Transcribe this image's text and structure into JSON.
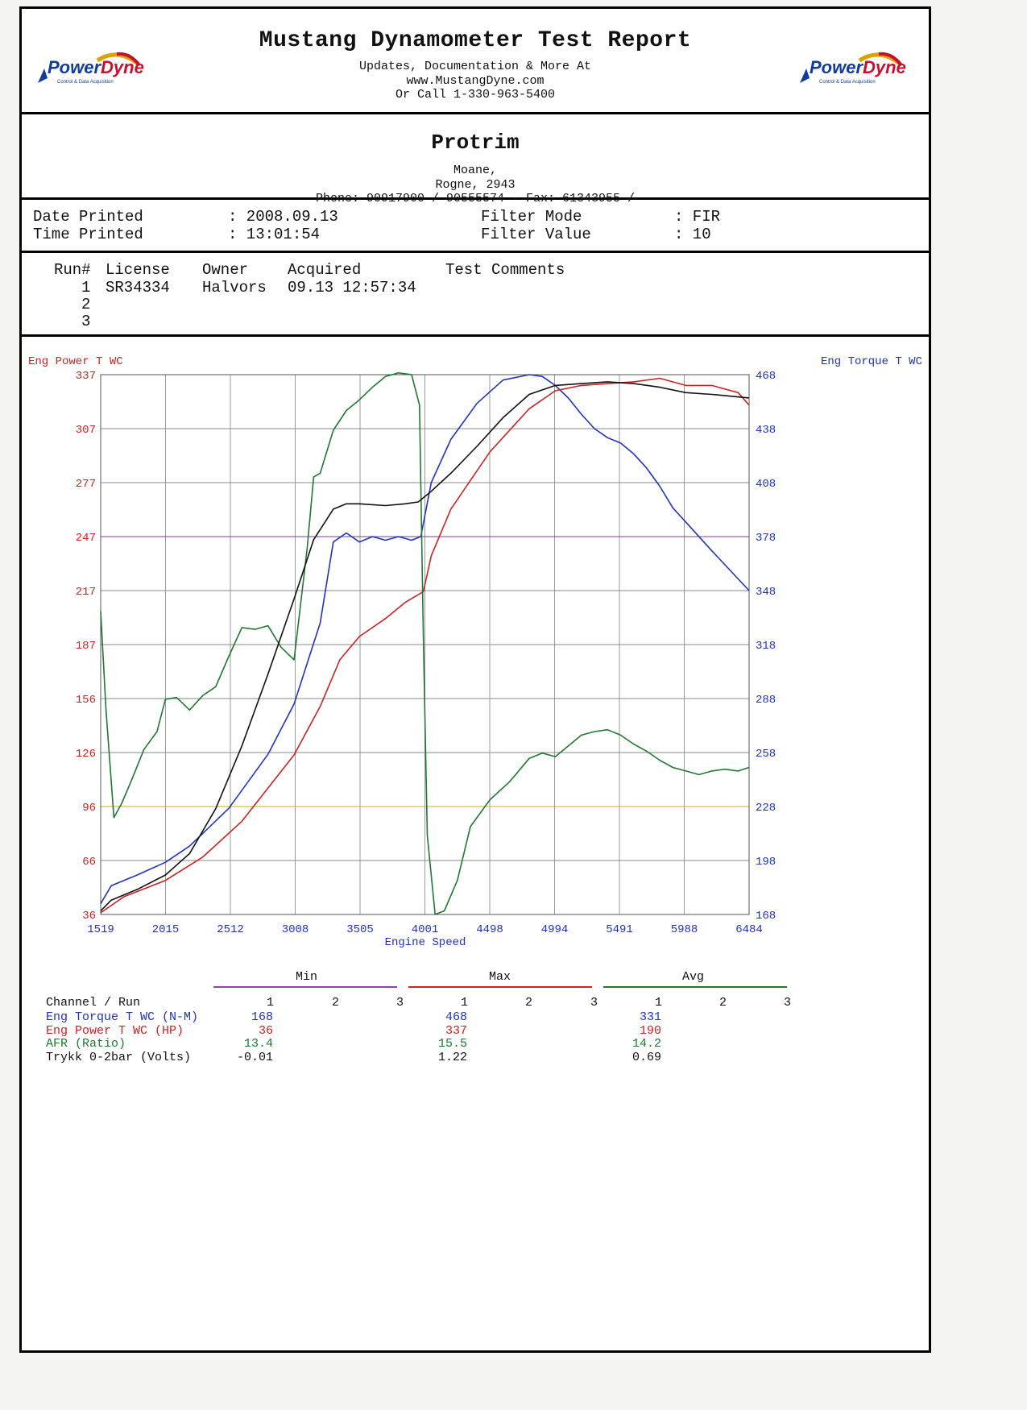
{
  "header": {
    "title": "Mustang Dynamometer Test Report",
    "line1": "Updates, Documentation & More At",
    "line2": "www.MustangDyne.com",
    "line3": "Or Call 1-330-963-5400",
    "logo_text_a": "Power",
    "logo_text_b": "Dyne",
    "logo_tagline": "Control & Data Acquisition"
  },
  "shop": {
    "name": "Protrim",
    "address1": "Moane,",
    "address2": "Rogne,   2943",
    "phone": "Phone: 90917900 / 90555574 - Fax: 61343955 /"
  },
  "print_info": {
    "date_label": "Date Printed",
    "date_value": ": 2008.09.13",
    "time_label": "Time Printed",
    "time_value": ": 13:01:54",
    "filter_mode_label": "Filter Mode",
    "filter_mode_value": ": FIR",
    "filter_value_label": "Filter Value",
    "filter_value_value": ": 10"
  },
  "runs": {
    "headers": [
      "Run#",
      "License",
      "Owner",
      "Acquired",
      "Test Comments"
    ],
    "rows": [
      {
        "run": "1",
        "license": "SR34334",
        "owner": "Halvors",
        "acquired": "09.13 12:57:34",
        "comments": ""
      },
      {
        "run": "2",
        "license": "",
        "owner": "",
        "acquired": "",
        "comments": ""
      },
      {
        "run": "3",
        "license": "",
        "owner": "",
        "acquired": "",
        "comments": ""
      }
    ]
  },
  "chart_data": {
    "type": "line",
    "title": "",
    "xlabel": "Engine Speed",
    "ylabel_left": "Eng Power T WC",
    "ylabel_right": "Eng Torque T WC",
    "xlim": [
      1519,
      6484
    ],
    "ylim_left": [
      36,
      337
    ],
    "ylim_right": [
      168,
      468
    ],
    "x_ticks": [
      "1519",
      "2015",
      "2512",
      "3008",
      "3505",
      "4001",
      "4498",
      "4994",
      "5491",
      "5988",
      "6484"
    ],
    "y_left_ticks": [
      "337",
      "307",
      "277",
      "247",
      "217",
      "187",
      "156",
      "126",
      "96",
      "66",
      "36"
    ],
    "y_right_ticks": [
      "468",
      "438",
      "408",
      "378",
      "348",
      "318",
      "288",
      "258",
      "228",
      "198",
      "168"
    ],
    "grid": true,
    "colors": {
      "torque": "#2233bb",
      "power": "#cc2222",
      "afr": "#227733",
      "boost": "#111111",
      "left_axis": "#cc2222",
      "right_axis": "#2233bb",
      "x_axis": "#2233bb"
    },
    "series": [
      {
        "name": "Eng Torque T WC (N-M)",
        "axis": "right",
        "color": "#2233bb",
        "x": [
          1519,
          1600,
          1800,
          2015,
          2200,
          2500,
          2800,
          3000,
          3200,
          3300,
          3400,
          3500,
          3600,
          3700,
          3800,
          3900,
          3970,
          4050,
          4200,
          4400,
          4600,
          4800,
          4900,
          5000,
          5100,
          5200,
          5300,
          5400,
          5500,
          5600,
          5700,
          5800,
          5900,
          6000,
          6200,
          6484
        ],
        "y": [
          174,
          184,
          190,
          197,
          206,
          227,
          257,
          285,
          330,
          375,
          380,
          375,
          378,
          376,
          378,
          376,
          378,
          408,
          432,
          452,
          465,
          468,
          467,
          462,
          455,
          446,
          438,
          433,
          430,
          424,
          416,
          406,
          394,
          386,
          370,
          348
        ]
      },
      {
        "name": "Eng Power T WC (HP)",
        "axis": "left",
        "color": "#cc2222",
        "x": [
          1519,
          1700,
          2015,
          2300,
          2600,
          3000,
          3200,
          3350,
          3500,
          3700,
          3850,
          3990,
          4050,
          4200,
          4500,
          4800,
          5000,
          5200,
          5400,
          5600,
          5800,
          6000,
          6200,
          6400,
          6484
        ],
        "y": [
          37,
          46,
          55,
          68,
          88,
          125,
          152,
          178,
          191,
          201,
          210,
          216,
          236,
          262,
          294,
          318,
          328,
          331,
          332,
          333,
          335,
          331,
          331,
          327,
          320
        ]
      },
      {
        "name": "AFR (Ratio)",
        "axis": "left",
        "color": "#227733",
        "x": [
          1519,
          1560,
          1620,
          1680,
          1750,
          1850,
          1950,
          2015,
          2100,
          2200,
          2300,
          2400,
          2500,
          2600,
          2700,
          2800,
          2900,
          3000,
          3100,
          3150,
          3200,
          3300,
          3400,
          3500,
          3600,
          3700,
          3800,
          3900,
          3960,
          3990,
          4020,
          4080,
          4150,
          4250,
          4350,
          4500,
          4650,
          4800,
          4900,
          5000,
          5100,
          5200,
          5300,
          5400,
          5500,
          5600,
          5700,
          5800,
          5900,
          6000,
          6100,
          6200,
          6300,
          6400,
          6484
        ],
        "y": [
          205,
          150,
          90,
          98,
          110,
          128,
          138,
          156,
          157,
          150,
          158,
          163,
          180,
          196,
          195,
          197,
          185,
          178,
          240,
          280,
          282,
          306,
          317,
          323,
          330,
          336,
          338,
          337,
          320,
          190,
          80,
          36,
          38,
          55,
          85,
          100,
          110,
          123,
          126,
          124,
          130,
          136,
          138,
          139,
          136,
          131,
          127,
          122,
          118,
          116,
          114,
          116,
          117,
          116,
          118
        ]
      },
      {
        "name": "Trykk 0-2bar (Volts)",
        "axis": "left",
        "color": "#111111",
        "x": [
          1519,
          1600,
          1800,
          2015,
          2200,
          2400,
          2600,
          2800,
          3000,
          3150,
          3300,
          3400,
          3500,
          3700,
          3850,
          3950,
          4050,
          4200,
          4400,
          4600,
          4800,
          5000,
          5200,
          5400,
          5600,
          5800,
          6000,
          6200,
          6484
        ],
        "y": [
          38,
          44,
          50,
          58,
          70,
          95,
          130,
          170,
          212,
          245,
          262,
          265,
          265,
          264,
          265,
          266,
          272,
          282,
          297,
          313,
          326,
          331,
          332,
          333,
          332,
          330,
          327,
          326,
          324
        ]
      }
    ]
  },
  "stats": {
    "group_labels": [
      "Min",
      "Max",
      "Avg"
    ],
    "channel_header": "Channel / Run",
    "run_numbers": [
      "1",
      "2",
      "3"
    ],
    "rows": [
      {
        "name": "Eng Torque T WC (N-M)",
        "color": "#2233bb",
        "min": "168",
        "max": "468",
        "avg": "331"
      },
      {
        "name": "Eng Power T WC (HP)",
        "color": "#cc2222",
        "min": "36",
        "max": "337",
        "avg": "190"
      },
      {
        "name": "AFR (Ratio)",
        "color": "#227733",
        "min": "13.4",
        "max": "15.5",
        "avg": "14.2"
      },
      {
        "name": "Trykk 0-2bar (Volts)",
        "color": "#111111",
        "min": "-0.01",
        "max": "1.22",
        "avg": "0.69"
      }
    ]
  }
}
